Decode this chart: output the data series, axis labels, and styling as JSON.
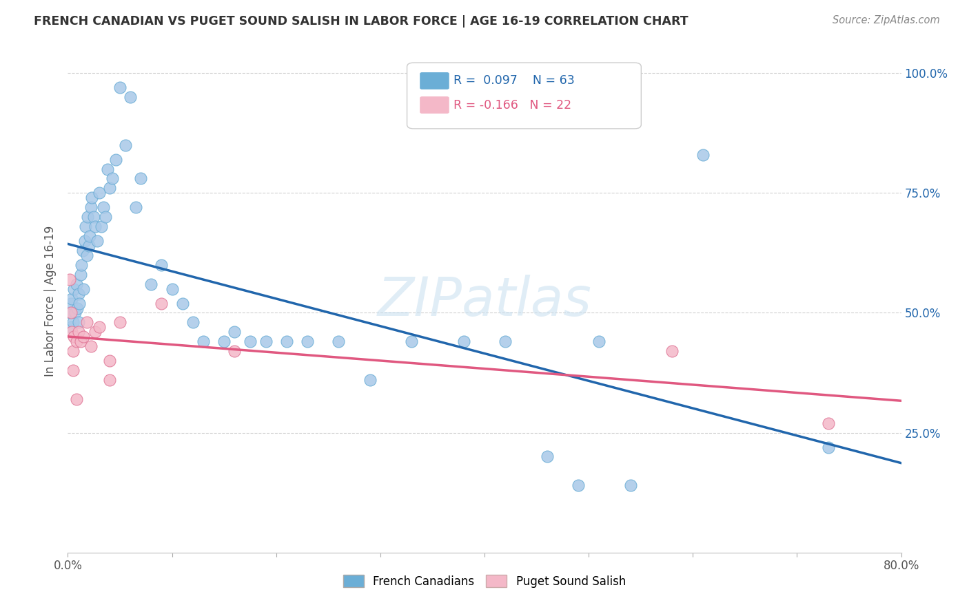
{
  "title": "FRENCH CANADIAN VS PUGET SOUND SALISH IN LABOR FORCE | AGE 16-19 CORRELATION CHART",
  "source": "Source: ZipAtlas.com",
  "ylabel": "In Labor Force | Age 16-19",
  "xmin": 0.0,
  "xmax": 0.8,
  "ymin": 0.0,
  "ymax": 1.05,
  "yticks": [
    0.25,
    0.5,
    0.75,
    1.0
  ],
  "ytick_labels": [
    "25.0%",
    "50.0%",
    "75.0%",
    "100.0%"
  ],
  "xticks": [
    0.0,
    0.1,
    0.2,
    0.3,
    0.4,
    0.5,
    0.6,
    0.7,
    0.8
  ],
  "xtick_labels": [
    "0.0%",
    "",
    "",
    "",
    "",
    "",
    "",
    "",
    "80.0%"
  ],
  "blue_R": 0.097,
  "blue_N": 63,
  "pink_R": -0.166,
  "pink_N": 22,
  "watermark": "ZIPatlas",
  "blue_color": "#a8c8e8",
  "blue_edge_color": "#6baed6",
  "pink_color": "#f4b8c8",
  "pink_edge_color": "#e07898",
  "blue_line_color": "#2166ac",
  "pink_line_color": "#e05880",
  "legend_blue_color": "#6baed6",
  "legend_pink_color": "#f4b8c8",
  "french_canadian_x": [
    0.002,
    0.003,
    0.003,
    0.004,
    0.005,
    0.006,
    0.007,
    0.008,
    0.009,
    0.01,
    0.01,
    0.011,
    0.012,
    0.013,
    0.014,
    0.015,
    0.016,
    0.017,
    0.018,
    0.019,
    0.02,
    0.021,
    0.022,
    0.023,
    0.025,
    0.026,
    0.028,
    0.03,
    0.032,
    0.034,
    0.036,
    0.038,
    0.04,
    0.043,
    0.046,
    0.05,
    0.055,
    0.06,
    0.065,
    0.07,
    0.08,
    0.09,
    0.1,
    0.11,
    0.12,
    0.13,
    0.15,
    0.16,
    0.175,
    0.19,
    0.21,
    0.23,
    0.26,
    0.29,
    0.33,
    0.38,
    0.42,
    0.46,
    0.49,
    0.51,
    0.54,
    0.61,
    0.73
  ],
  "french_canadian_y": [
    0.5,
    0.52,
    0.47,
    0.53,
    0.48,
    0.55,
    0.5,
    0.56,
    0.51,
    0.48,
    0.54,
    0.52,
    0.58,
    0.6,
    0.63,
    0.55,
    0.65,
    0.68,
    0.62,
    0.7,
    0.64,
    0.66,
    0.72,
    0.74,
    0.7,
    0.68,
    0.65,
    0.75,
    0.68,
    0.72,
    0.7,
    0.8,
    0.76,
    0.78,
    0.82,
    0.97,
    0.85,
    0.95,
    0.72,
    0.78,
    0.56,
    0.6,
    0.55,
    0.52,
    0.48,
    0.44,
    0.44,
    0.46,
    0.44,
    0.44,
    0.44,
    0.44,
    0.44,
    0.36,
    0.44,
    0.44,
    0.44,
    0.2,
    0.14,
    0.44,
    0.14,
    0.83,
    0.22
  ],
  "puget_sound_x": [
    0.002,
    0.003,
    0.004,
    0.005,
    0.006,
    0.008,
    0.01,
    0.012,
    0.015,
    0.018,
    0.022,
    0.026,
    0.03,
    0.04,
    0.05,
    0.09,
    0.16,
    0.58,
    0.73,
    0.005,
    0.008,
    0.04
  ],
  "puget_sound_y": [
    0.57,
    0.5,
    0.46,
    0.42,
    0.45,
    0.44,
    0.46,
    0.44,
    0.45,
    0.48,
    0.43,
    0.46,
    0.47,
    0.4,
    0.48,
    0.52,
    0.42,
    0.42,
    0.27,
    0.38,
    0.32,
    0.36
  ],
  "background_color": "#ffffff",
  "grid_color": "#d0d0d0"
}
